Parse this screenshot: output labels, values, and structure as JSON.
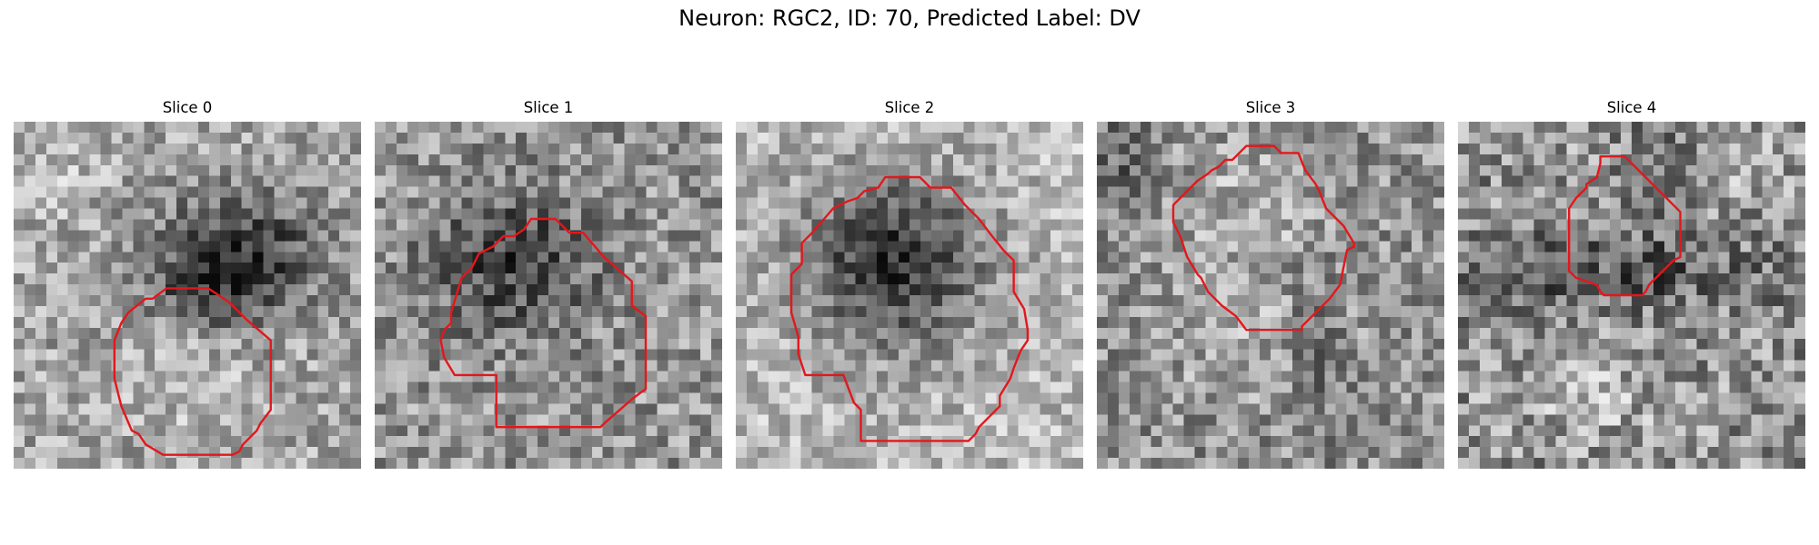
{
  "figure": {
    "title": "Neuron: RGC2, ID: 70, Predicted Label: DV"
  },
  "panels": [
    {
      "title": "Slice 0"
    },
    {
      "title": "Slice 1"
    },
    {
      "title": "Slice 2"
    },
    {
      "title": "Slice 3"
    },
    {
      "title": "Slice 4"
    }
  ],
  "colors": {
    "contour": "#e3171c",
    "background": "#ffffff"
  }
}
